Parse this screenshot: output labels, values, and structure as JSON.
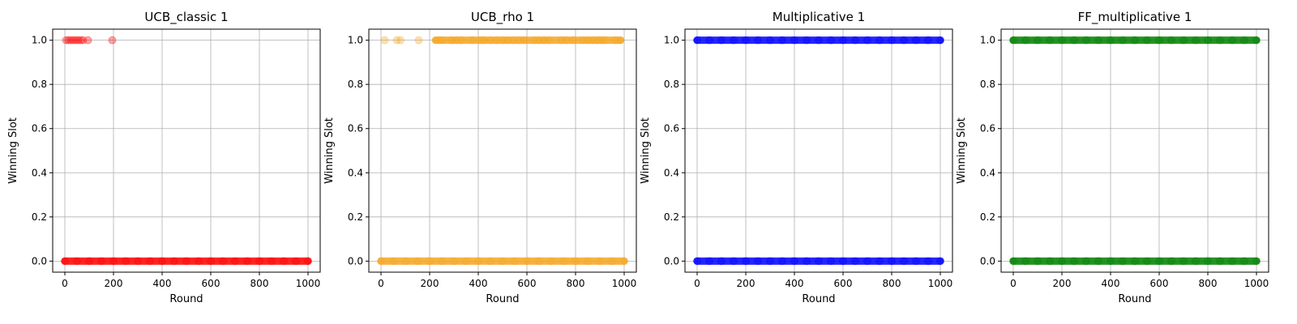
{
  "chart_data": [
    {
      "type": "scatter",
      "title": "UCB_classic 1",
      "xlabel": "Round",
      "ylabel": "Winning Slot",
      "xlim": [
        -50,
        1050
      ],
      "ylim": [
        -0.05,
        1.05
      ],
      "xticks": [
        0,
        200,
        400,
        600,
        800,
        1000
      ],
      "yticks": [
        0.0,
        0.2,
        0.4,
        0.6,
        0.8,
        1.0
      ],
      "xtick_labels": [
        "0",
        "200",
        "400",
        "600",
        "800",
        "1000"
      ],
      "ytick_labels": [
        "0.0",
        "0.2",
        "0.4",
        "0.6",
        "0.8",
        "1.0"
      ],
      "grid": true,
      "color": "#ff0000",
      "series": [
        {
          "points": [
            [
              0,
              0
            ],
            [
              50,
              0
            ],
            [
              100,
              0
            ],
            [
              150,
              0
            ],
            [
              200,
              0
            ],
            [
              250,
              0
            ],
            [
              300,
              0
            ],
            [
              350,
              0
            ],
            [
              400,
              0
            ],
            [
              450,
              0
            ],
            [
              500,
              0
            ],
            [
              550,
              0
            ],
            [
              600,
              0
            ],
            [
              650,
              0
            ],
            [
              700,
              0
            ],
            [
              750,
              0
            ],
            [
              800,
              0
            ],
            [
              850,
              0
            ],
            [
              900,
              0
            ],
            [
              950,
              0
            ],
            [
              1000,
              0
            ],
            [
              5,
              1
            ],
            [
              15,
              1
            ],
            [
              25,
              1
            ],
            [
              35,
              1
            ],
            [
              45,
              1
            ],
            [
              55,
              1
            ],
            [
              65,
              1
            ],
            [
              75,
              1
            ],
            [
              95,
              1
            ],
            [
              195,
              1
            ]
          ]
        }
      ]
    },
    {
      "type": "scatter",
      "title": "UCB_rho 1",
      "xlabel": "Round",
      "ylabel": "Winning Slot",
      "xlim": [
        -50,
        1050
      ],
      "ylim": [
        -0.05,
        1.05
      ],
      "xticks": [
        0,
        200,
        400,
        600,
        800,
        1000
      ],
      "yticks": [
        0.0,
        0.2,
        0.4,
        0.6,
        0.8,
        1.0
      ],
      "xtick_labels": [
        "0",
        "200",
        "400",
        "600",
        "800",
        "1000"
      ],
      "ytick_labels": [
        "0.0",
        "0.2",
        "0.4",
        "0.6",
        "0.8",
        "1.0"
      ],
      "grid": true,
      "color": "#f5a623",
      "series": [
        {
          "points": [
            [
              0,
              0
            ],
            [
              50,
              0
            ],
            [
              100,
              0
            ],
            [
              150,
              0
            ],
            [
              200,
              0
            ],
            [
              250,
              0
            ],
            [
              300,
              0
            ],
            [
              350,
              0
            ],
            [
              400,
              0
            ],
            [
              450,
              0
            ],
            [
              500,
              0
            ],
            [
              550,
              0
            ],
            [
              600,
              0
            ],
            [
              650,
              0
            ],
            [
              700,
              0
            ],
            [
              750,
              0
            ],
            [
              800,
              0
            ],
            [
              850,
              0
            ],
            [
              900,
              0
            ],
            [
              950,
              0
            ],
            [
              1000,
              0
            ],
            [
              15,
              1
            ],
            [
              65,
              1
            ],
            [
              80,
              1
            ],
            [
              155,
              1
            ],
            [
              225,
              1
            ],
            [
              240,
              1
            ],
            [
              255,
              1
            ],
            [
              290,
              1
            ],
            [
              310,
              1
            ],
            [
              330,
              1
            ],
            [
              375,
              1
            ],
            [
              410,
              1
            ],
            [
              425,
              1
            ],
            [
              450,
              1
            ],
            [
              475,
              1
            ],
            [
              500,
              1
            ],
            [
              520,
              1
            ],
            [
              545,
              1
            ],
            [
              570,
              1
            ],
            [
              590,
              1
            ],
            [
              630,
              1
            ],
            [
              650,
              1
            ],
            [
              670,
              1
            ],
            [
              690,
              1
            ],
            [
              740,
              1
            ],
            [
              760,
              1
            ],
            [
              790,
              1
            ],
            [
              830,
              1
            ],
            [
              850,
              1
            ],
            [
              870,
              1
            ],
            [
              890,
              1
            ],
            [
              905,
              1
            ],
            [
              920,
              1
            ],
            [
              965,
              1
            ],
            [
              985,
              1
            ]
          ]
        }
      ]
    },
    {
      "type": "scatter",
      "title": "Multiplicative 1",
      "xlabel": "Round",
      "ylabel": "Winning Slot",
      "xlim": [
        -50,
        1050
      ],
      "ylim": [
        -0.05,
        1.05
      ],
      "xticks": [
        0,
        200,
        400,
        600,
        800,
        1000
      ],
      "yticks": [
        0.0,
        0.2,
        0.4,
        0.6,
        0.8,
        1.0
      ],
      "xtick_labels": [
        "0",
        "200",
        "400",
        "600",
        "800",
        "1000"
      ],
      "ytick_labels": [
        "0.0",
        "0.2",
        "0.4",
        "0.6",
        "0.8",
        "1.0"
      ],
      "grid": true,
      "color": "#0000ff",
      "series": [
        {
          "points": [
            [
              0,
              0
            ],
            [
              50,
              0
            ],
            [
              100,
              0
            ],
            [
              150,
              0
            ],
            [
              200,
              0
            ],
            [
              250,
              0
            ],
            [
              300,
              0
            ],
            [
              350,
              0
            ],
            [
              400,
              0
            ],
            [
              450,
              0
            ],
            [
              500,
              0
            ],
            [
              550,
              0
            ],
            [
              600,
              0
            ],
            [
              650,
              0
            ],
            [
              700,
              0
            ],
            [
              750,
              0
            ],
            [
              800,
              0
            ],
            [
              850,
              0
            ],
            [
              900,
              0
            ],
            [
              950,
              0
            ],
            [
              1000,
              0
            ],
            [
              0,
              1
            ],
            [
              50,
              1
            ],
            [
              100,
              1
            ],
            [
              150,
              1
            ],
            [
              200,
              1
            ],
            [
              250,
              1
            ],
            [
              300,
              1
            ],
            [
              350,
              1
            ],
            [
              400,
              1
            ],
            [
              450,
              1
            ],
            [
              500,
              1
            ],
            [
              550,
              1
            ],
            [
              600,
              1
            ],
            [
              650,
              1
            ],
            [
              700,
              1
            ],
            [
              750,
              1
            ],
            [
              800,
              1
            ],
            [
              850,
              1
            ],
            [
              900,
              1
            ],
            [
              950,
              1
            ],
            [
              1000,
              1
            ]
          ]
        }
      ]
    },
    {
      "type": "scatter",
      "title": "FF_multiplicative 1",
      "xlabel": "Round",
      "ylabel": "Winning Slot",
      "xlim": [
        -50,
        1050
      ],
      "ylim": [
        -0.05,
        1.05
      ],
      "xticks": [
        0,
        200,
        400,
        600,
        800,
        1000
      ],
      "yticks": [
        0.0,
        0.2,
        0.4,
        0.6,
        0.8,
        1.0
      ],
      "xtick_labels": [
        "0",
        "200",
        "400",
        "600",
        "800",
        "1000"
      ],
      "ytick_labels": [
        "0.0",
        "0.2",
        "0.4",
        "0.6",
        "0.8",
        "1.0"
      ],
      "grid": true,
      "color": "#008000",
      "series": [
        {
          "points": [
            [
              0,
              0
            ],
            [
              50,
              0
            ],
            [
              100,
              0
            ],
            [
              150,
              0
            ],
            [
              200,
              0
            ],
            [
              250,
              0
            ],
            [
              300,
              0
            ],
            [
              350,
              0
            ],
            [
              400,
              0
            ],
            [
              450,
              0
            ],
            [
              500,
              0
            ],
            [
              550,
              0
            ],
            [
              600,
              0
            ],
            [
              650,
              0
            ],
            [
              700,
              0
            ],
            [
              750,
              0
            ],
            [
              800,
              0
            ],
            [
              850,
              0
            ],
            [
              900,
              0
            ],
            [
              950,
              0
            ],
            [
              1000,
              0
            ],
            [
              0,
              1
            ],
            [
              50,
              1
            ],
            [
              100,
              1
            ],
            [
              150,
              1
            ],
            [
              200,
              1
            ],
            [
              250,
              1
            ],
            [
              300,
              1
            ],
            [
              350,
              1
            ],
            [
              400,
              1
            ],
            [
              450,
              1
            ],
            [
              500,
              1
            ],
            [
              550,
              1
            ],
            [
              600,
              1
            ],
            [
              650,
              1
            ],
            [
              700,
              1
            ],
            [
              750,
              1
            ],
            [
              800,
              1
            ],
            [
              850,
              1
            ],
            [
              900,
              1
            ],
            [
              950,
              1
            ],
            [
              1000,
              1
            ]
          ]
        }
      ]
    }
  ]
}
